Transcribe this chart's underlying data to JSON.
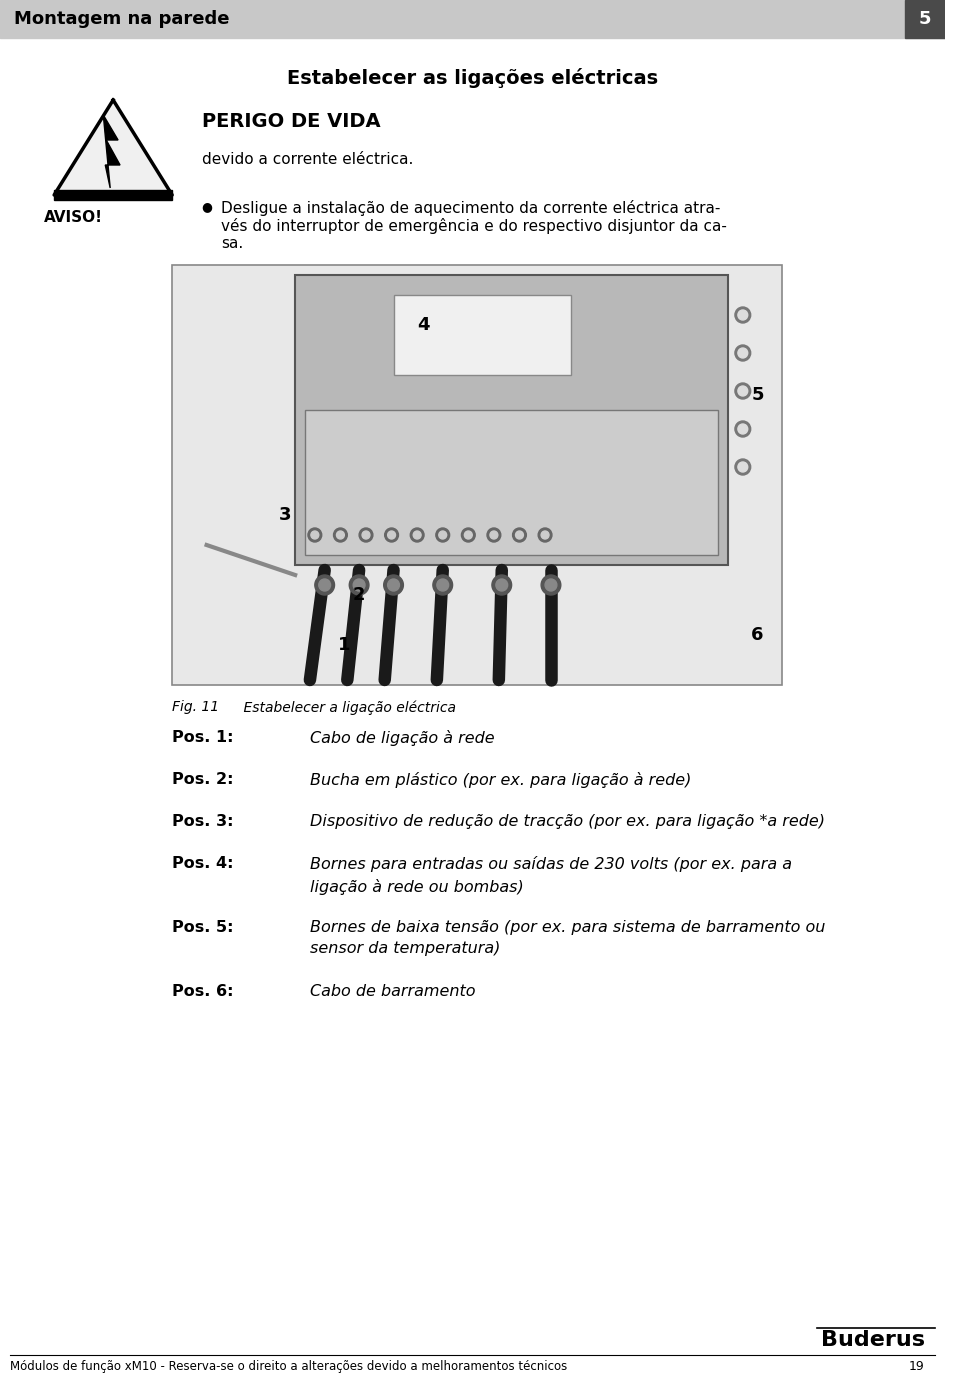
{
  "page_bg": "#ffffff",
  "header_bg": "#c8c8c8",
  "header_text": "Montagem na parede",
  "header_text_color": "#000000",
  "header_number": "5",
  "header_number_bg": "#4a4a4a",
  "header_number_color": "#ffffff",
  "section_title": "Estabelecer as ligações eléctricas",
  "warning_title": "PERIGO DE VIDA",
  "warning_subtitle": "devido a corrente eléctrica.",
  "aviso_label": "AVISO!",
  "warning_body_line1": "Desligue a instalação de aquecimento da corrente eléctrica atra-",
  "warning_body_line2": "vés do interruptor de emergência e do respectivo disjuntor da ca-",
  "warning_body_line3": "sa.",
  "fig_caption_italic": "Fig. 11",
  "fig_caption_text": "    Estabelecer a ligação eléctrica",
  "positions": [
    {
      "label": "Pos. 1:",
      "text": "Cabo de ligação à rede",
      "lines": 1
    },
    {
      "label": "Pos. 2:",
      "text": "Bucha em plástico (por ex. para ligação à rede)",
      "lines": 1
    },
    {
      "label": "Pos. 3:",
      "text": "Dispositivo de redução de tracção (por ex. para ligação *a rede)",
      "lines": 1
    },
    {
      "label": "Pos. 4:",
      "text": "Bornes para entradas ou saídas de 230 volts (por ex. para a\nligação à rede ou bombas)",
      "lines": 2
    },
    {
      "label": "Pos. 5:",
      "text": "Bornes de baixa tensão (por ex. para sistema de barramento ou\nsensor da temperatura)",
      "lines": 2
    },
    {
      "label": "Pos. 6:",
      "text": "Cabo de barramento",
      "lines": 1
    }
  ],
  "footer_line_color": "#000000",
  "footer_brand": "Buderus",
  "footer_text": "Módulos de função xM10 - Reserva-se o direito a alterações devido a melhoramentos técnicos",
  "footer_page": "19",
  "triangle_fill": "#f0f0f0",
  "triangle_stroke": "#000000",
  "bolt_color": "#000000",
  "diag_edge": "#888888",
  "diag_face": "#e8e8e8"
}
